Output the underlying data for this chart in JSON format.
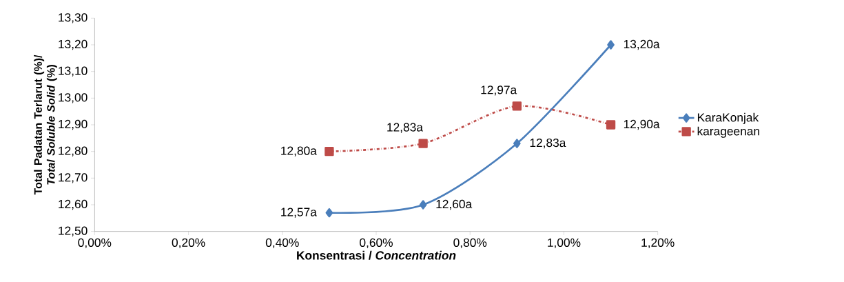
{
  "chart_data": {
    "type": "line",
    "xlabel": "Konsentrasi / *Concentration*",
    "ylabel": "Total Padatan Terlarut (%)/ *Total Soluble Solid* (%)",
    "x": [
      0.5,
      0.7,
      0.9,
      1.1
    ],
    "series": [
      {
        "name": "KaraKonjak",
        "color": "#4a7ebb",
        "values": [
          12.57,
          12.6,
          12.83,
          13.2
        ],
        "value_labels": [
          "12,57a",
          "12,60a",
          "12,83a",
          "13,20a"
        ],
        "marker": "diamond",
        "line_style": "solid"
      },
      {
        "name": "karageenan",
        "color": "#be4b48",
        "values": [
          12.8,
          12.83,
          12.97,
          12.9
        ],
        "value_labels": [
          "12,80a",
          "12,83a",
          "12,97a",
          "12,90a"
        ],
        "marker": "square",
        "line_style": "dashed"
      }
    ],
    "xlim": [
      0,
      1.2
    ],
    "ylim": [
      12.5,
      13.3
    ],
    "xticks": [
      {
        "value": 0,
        "label": "0,00%"
      },
      {
        "value": 0.2,
        "label": "0,20%"
      },
      {
        "value": 0.4,
        "label": "0,40%"
      },
      {
        "value": 0.6,
        "label": "0,60%"
      },
      {
        "value": 0.8,
        "label": "0,80%"
      },
      {
        "value": 1.0,
        "label": "1,00%"
      },
      {
        "value": 1.2,
        "label": "1,20%"
      }
    ],
    "yticks": [
      {
        "value": 12.5,
        "label": "12,50"
      },
      {
        "value": 12.6,
        "label": "12,60"
      },
      {
        "value": 12.7,
        "label": "12,70"
      },
      {
        "value": 12.8,
        "label": "12,80"
      },
      {
        "value": 12.9,
        "label": "12,90"
      },
      {
        "value": 13.0,
        "label": "13,00"
      },
      {
        "value": 13.1,
        "label": "13,10"
      },
      {
        "value": 13.2,
        "label": "13,20"
      },
      {
        "value": 13.3,
        "label": "13,30"
      }
    ],
    "grid": false,
    "legend": "right"
  }
}
